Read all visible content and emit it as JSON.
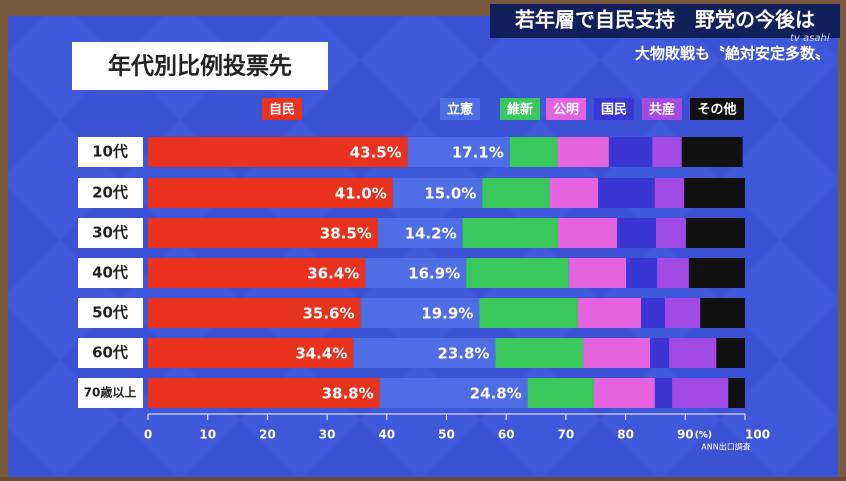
{
  "header": {
    "title": "若年層で自民支持　野党の今後は",
    "subtitle": "大物敗戦も〝絶対安定多数〟",
    "logo": "tv asahi"
  },
  "chart_data": {
    "type": "stacked-bar-horizontal",
    "title": "年代別比例投票先",
    "source": "ANN出口調査",
    "x_unit": "(%)",
    "categories": [
      "10代",
      "20代",
      "30代",
      "40代",
      "50代",
      "60代",
      "70歳以上"
    ],
    "series": [
      {
        "name": "自民",
        "color": "#e8321e",
        "values": [
          43.5,
          41.0,
          38.5,
          36.4,
          35.6,
          34.4,
          38.8
        ],
        "value_labels": [
          "43.5%",
          "41.0%",
          "38.5%",
          "36.4%",
          "35.6%",
          "34.4%",
          "38.8%"
        ]
      },
      {
        "name": "立憲",
        "color": "#4f6ee6",
        "values": [
          17.1,
          15.0,
          14.2,
          16.9,
          19.9,
          23.8,
          24.8
        ],
        "value_labels": [
          "17.1%",
          "15.0%",
          "14.2%",
          "16.9%",
          "19.9%",
          "23.8%",
          "24.8%"
        ]
      },
      {
        "name": "維新",
        "color": "#38c85c",
        "values": [
          8.0,
          11.3,
          16.0,
          17.2,
          16.5,
          14.7,
          11.1
        ]
      },
      {
        "name": "公明",
        "color": "#e562e0",
        "values": [
          8.6,
          8.1,
          9.9,
          9.6,
          10.6,
          11.2,
          10.2
        ]
      },
      {
        "name": "国民",
        "color": "#3a36d4",
        "values": [
          7.3,
          9.5,
          6.5,
          5.2,
          4.0,
          3.2,
          2.9
        ]
      },
      {
        "name": "共産",
        "color": "#a24ae6",
        "values": [
          4.9,
          4.9,
          5.0,
          5.3,
          5.9,
          7.9,
          9.4
        ]
      },
      {
        "name": "その他",
        "color": "#111111",
        "values": [
          10.2,
          10.2,
          9.9,
          9.4,
          7.5,
          4.8,
          2.8
        ]
      }
    ],
    "xlim": [
      0,
      100
    ],
    "xticks": [
      0,
      10,
      20,
      30,
      40,
      50,
      60,
      70,
      80,
      90,
      100
    ]
  }
}
